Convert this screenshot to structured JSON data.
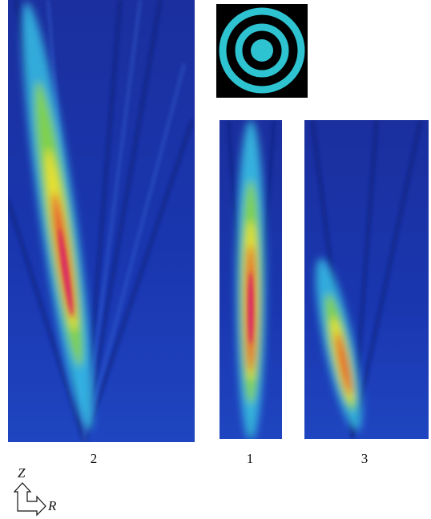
{
  "panels": [
    {
      "label": "2"
    },
    {
      "label": "1"
    },
    {
      "label": "3"
    }
  ],
  "axes": {
    "z": "Z",
    "r": "R"
  }
}
